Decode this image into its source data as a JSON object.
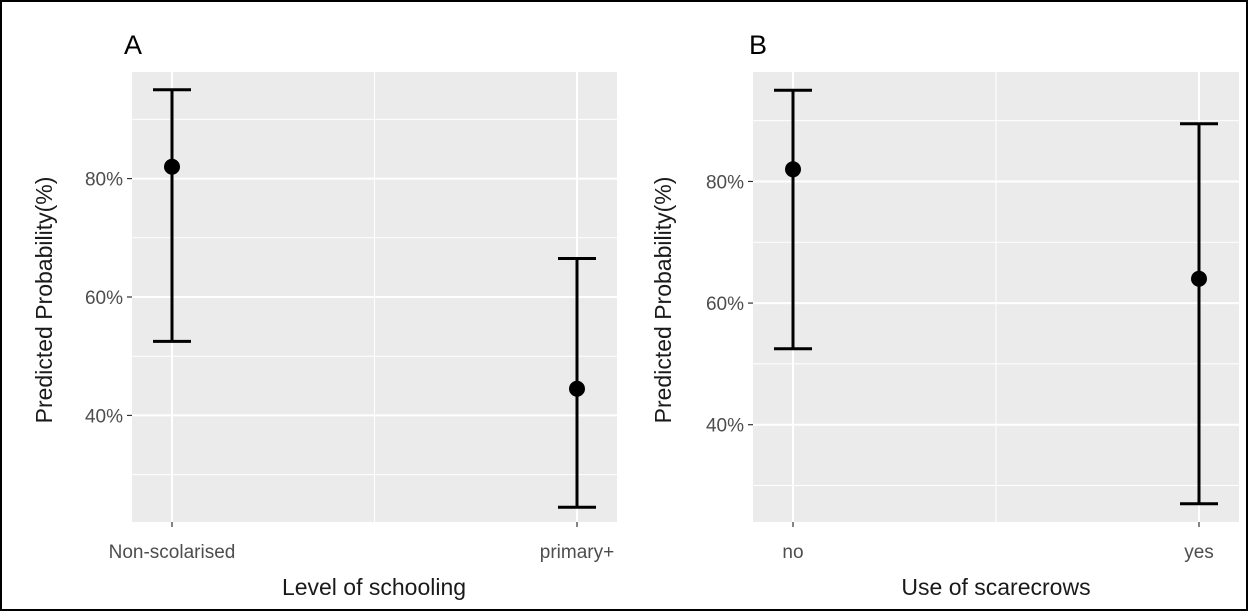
{
  "figure": {
    "border_color": "#000000",
    "panel_bg": "#ebebeb",
    "grid_color": "#ffffff",
    "mark_color": "#000000",
    "tick_text_color": "#4d4d4d",
    "title_text_color": "#1a1a1a"
  },
  "chart_data": [
    {
      "type": "scatter",
      "panel_label": "A",
      "title": "",
      "xlabel": "Level of schooling",
      "ylabel": "Predicted Probability(%)",
      "categories": [
        "Non-scolarised",
        "primary+"
      ],
      "values": [
        82,
        44.5
      ],
      "lower": [
        52.5,
        24.5
      ],
      "upper": [
        95,
        66.5
      ],
      "ylim": [
        22,
        98
      ],
      "yticks": [
        40,
        60,
        80
      ],
      "ytick_labels": [
        "40%",
        "60%",
        "80%"
      ],
      "error_bars": true,
      "grid": true,
      "legend": "none"
    },
    {
      "type": "scatter",
      "panel_label": "B",
      "title": "",
      "xlabel": "Use of scarecrows",
      "ylabel": "Predicted Probability(%)",
      "categories": [
        "no",
        "yes"
      ],
      "values": [
        82,
        64
      ],
      "lower": [
        52.5,
        27
      ],
      "upper": [
        95,
        89.5
      ],
      "ylim": [
        24,
        98
      ],
      "yticks": [
        40,
        60,
        80
      ],
      "ytick_labels": [
        "40%",
        "60%",
        "80%"
      ],
      "error_bars": true,
      "grid": true,
      "legend": "none"
    }
  ]
}
